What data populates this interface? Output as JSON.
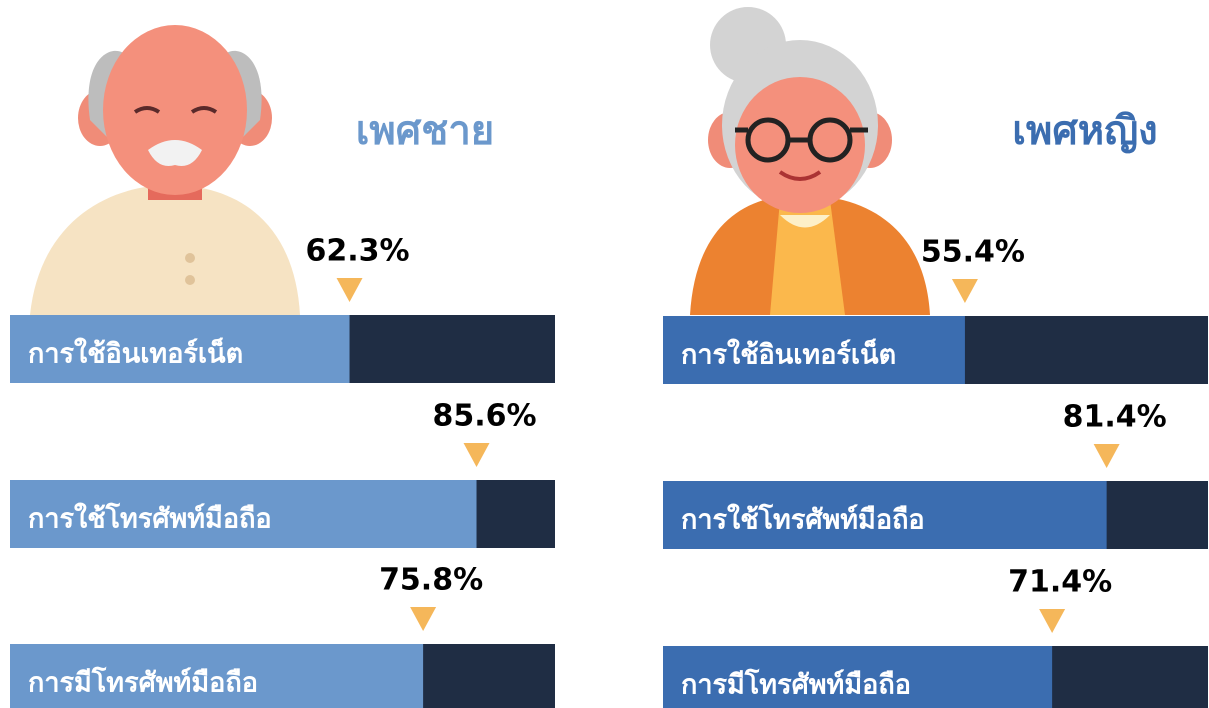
{
  "chart_data": [
    {
      "type": "bar",
      "title": "เพศชาย",
      "categories": [
        "การใช้อินเทอร์เน็ต",
        "การใช้โทรศัพท์มือถือ",
        "การมีโทรศัพท์มือถือ"
      ],
      "values": [
        62.3,
        85.6,
        75.8
      ],
      "value_labels": [
        "62.3%",
        "85.6%",
        "75.8%"
      ],
      "color": "#6b98cc",
      "xlim": [
        0,
        100
      ]
    },
    {
      "type": "bar",
      "title": "เพศหญิง",
      "categories": [
        "การใช้อินเทอร์เน็ต",
        "การใช้โทรศัพท์มือถือ",
        "การมีโทรศัพท์มือถือ"
      ],
      "values": [
        55.4,
        81.4,
        71.4
      ],
      "value_labels": [
        "55.4%",
        "81.4%",
        "71.4%"
      ],
      "color": "#3b6db0",
      "xlim": [
        0,
        100
      ]
    }
  ]
}
